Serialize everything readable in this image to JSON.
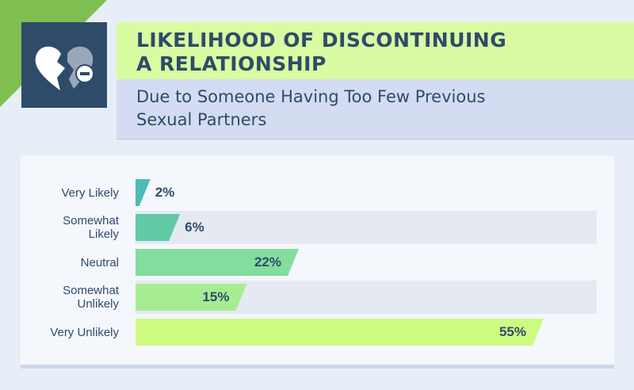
{
  "title_line1": "LIKELIHOOD OF DISCONTINUING",
  "title_line2": "A RELATIONSHIP",
  "subtitle_line1": "Due to Someone Having Too Few Previous",
  "subtitle_line2": "Sexual Partners",
  "icon": "broken-heart-minus-icon",
  "colors": {
    "navy": "#2f4b6a",
    "lime": "#d9fba2",
    "periwinkle": "#d3dcf0",
    "green": "#7fbf52"
  },
  "chart_data": {
    "type": "bar",
    "orientation": "horizontal",
    "title": "LIKELIHOOD OF DISCONTINUING A RELATIONSHIP",
    "subtitle": "Due to Someone Having Too Few Previous Sexual Partners",
    "categories": [
      [
        "Very Likely"
      ],
      [
        "Somewhat",
        "Likely"
      ],
      [
        "Neutral"
      ],
      [
        "Somewhat",
        "Unlikely"
      ],
      [
        "Very Unlikely"
      ]
    ],
    "values": [
      2,
      6,
      22,
      15,
      55
    ],
    "value_labels": [
      "2%",
      "6%",
      "22%",
      "15%",
      "55%"
    ],
    "bar_colors": [
      "#4cbcb4",
      "#62c9a6",
      "#82dd9f",
      "#a7ec92",
      "#cdfb82"
    ],
    "xlim": [
      0,
      55
    ],
    "grid": false,
    "legend": "none"
  }
}
